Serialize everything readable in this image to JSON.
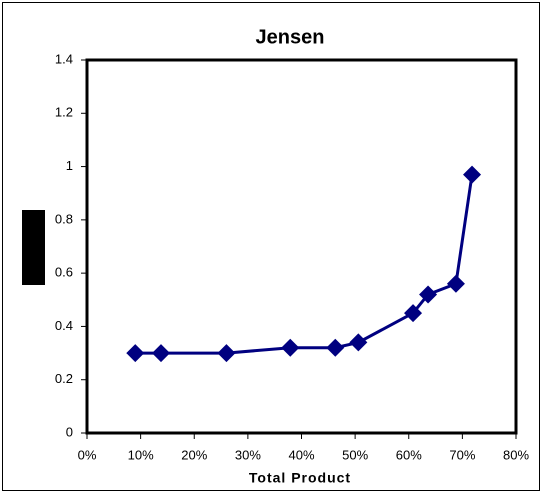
{
  "chart_data": {
    "type": "line",
    "title": "Jensen",
    "x_label": "Total Product",
    "x": [
      9,
      13.8,
      26,
      37.9,
      46.3,
      50.6,
      60.8,
      63.6,
      68.8,
      71.8
    ],
    "series": [
      {
        "color": "#000080",
        "values": [
          0.3,
          0.3,
          0.3,
          0.32,
          0.32,
          0.34,
          0.45,
          0.52,
          0.56,
          0.97
        ]
      }
    ],
    "xlim": [
      0,
      80
    ],
    "xticks": [
      {
        "value": 0,
        "label": "0%"
      },
      {
        "value": 10,
        "label": "10%"
      },
      {
        "value": 20,
        "label": "20%"
      },
      {
        "value": 30,
        "label": "30%"
      },
      {
        "value": 40,
        "label": "40%"
      },
      {
        "value": 50,
        "label": "50%"
      },
      {
        "value": 60,
        "label": "60%"
      },
      {
        "value": 70,
        "label": "70%"
      },
      {
        "value": 80,
        "label": "80%"
      }
    ],
    "ylim": [
      0,
      1.4
    ],
    "yticks": [
      0,
      0.2,
      0.4,
      0.6,
      0.8,
      1,
      1.2,
      1.4
    ],
    "grid": false
  }
}
